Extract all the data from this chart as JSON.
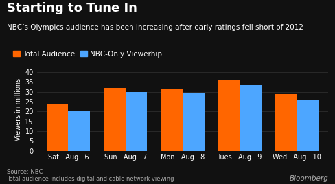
{
  "title": "Starting to Tune In",
  "subtitle": "NBC’s Olympics audience has been increasing after early ratings fell short of 2012",
  "legend": [
    "Total Audience",
    "NBC-Only Viewerhip"
  ],
  "categories": [
    "Sat.  Aug.  6",
    "Sun.  Aug.  7",
    "Mon.  Aug.  8",
    "Tues.  Aug.  9",
    "Wed.  Aug.  10"
  ],
  "total_audience": [
    23.5,
    31.8,
    31.5,
    36.0,
    28.7
  ],
  "nbc_only": [
    20.5,
    29.7,
    29.0,
    33.5,
    26.2
  ],
  "bar_color_total": "#FF6600",
  "bar_color_nbc": "#4DA6FF",
  "ylabel": "Viewers in millions",
  "ylim": [
    0,
    42
  ],
  "yticks": [
    0,
    5,
    10,
    15,
    20,
    25,
    30,
    35,
    40
  ],
  "background_color": "#111111",
  "text_color": "#ffffff",
  "muted_color": "#aaaaaa",
  "grid_color": "#333333",
  "source_text": "Source: NBC\nTotal audience includes digital and cable network viewing",
  "bloomberg_text": "Bloomberg",
  "title_fontsize": 13,
  "subtitle_fontsize": 7.5,
  "axis_fontsize": 7,
  "legend_fontsize": 7.5
}
